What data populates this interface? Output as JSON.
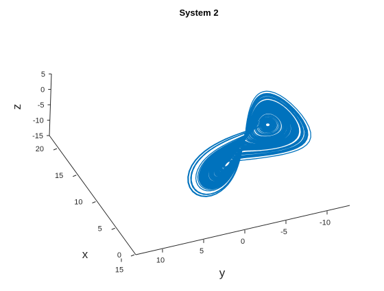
{
  "chart_data": {
    "type": "line",
    "projection": "3d",
    "title": "System 2",
    "xlabel": "x",
    "ylabel": "y",
    "zlabel": "z",
    "grid": false,
    "line_color": "#0072BD",
    "x_ticks": [
      {
        "value": 0,
        "label": "0"
      },
      {
        "value": 5,
        "label": "5"
      },
      {
        "value": 10,
        "label": "10"
      },
      {
        "value": 15,
        "label": "15"
      },
      {
        "value": 20,
        "label": "20"
      }
    ],
    "y_ticks": [
      {
        "value": 15,
        "label": "15"
      },
      {
        "value": 10,
        "label": "10"
      },
      {
        "value": 5,
        "label": "5"
      },
      {
        "value": 0,
        "label": "0"
      },
      {
        "value": -5,
        "label": "-5"
      },
      {
        "value": -10,
        "label": "-10"
      }
    ],
    "z_ticks": [
      {
        "value": 5,
        "label": "5"
      },
      {
        "value": 0,
        "label": "0"
      },
      {
        "value": -5,
        "label": "-5"
      },
      {
        "value": -10,
        "label": "-10"
      },
      {
        "value": -15,
        "label": "-15"
      }
    ]
  }
}
